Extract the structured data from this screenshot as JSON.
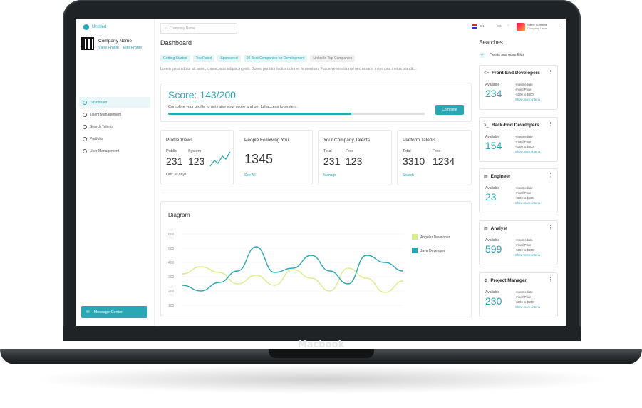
{
  "device": {
    "brand": "Macbook"
  },
  "sidebar": {
    "app_name": "Untitled",
    "company_name": "Company Name",
    "view_profile": "View Profile",
    "edit_profile": "Edit Profile",
    "items": [
      {
        "label": "Dashboard",
        "active": true
      },
      {
        "label": "Talent Management"
      },
      {
        "label": "Search Talents"
      },
      {
        "label": "Portfolio"
      },
      {
        "label": "User Management"
      }
    ],
    "message_center": "Message Center"
  },
  "header": {
    "search_placeholder": "Company Name",
    "language": "EN",
    "user_name": "Name Surname",
    "user_sub": "Company Label"
  },
  "main": {
    "title": "Dashboard",
    "chips": [
      "Getting Started",
      "Top Rated",
      "Sponsored",
      "50 Best Companies for Development",
      "LinkedIn Top Companies"
    ],
    "intro": "Lorem ipsum dolor sit amet, consectetur adipiscing elit. Donec porttitor luctus dolor et fermentum. Fusce venenatis nisl nec ornare, in tempus metus blandit...",
    "score": {
      "title": "Score: 143/200",
      "desc": "Complete your profile to get raise your score and get full access to system.",
      "progress": 0.715,
      "button": "Complete"
    },
    "stats": [
      {
        "title": "Profile Views",
        "a_label": "Public",
        "a_value": "231",
        "b_label": "System",
        "b_value": "123",
        "foot": "Last 30 days"
      },
      {
        "title": "People Following You",
        "value": "1345",
        "link": "See All"
      },
      {
        "title": "Your Company Talents",
        "a_label": "Total",
        "a_value": "231",
        "b_label": "Free",
        "b_value": "123",
        "link": "Manage"
      },
      {
        "title": "Platform Talents",
        "a_label": "Total",
        "a_value": "3310",
        "b_label": "Free",
        "b_value": "1234",
        "link": "Search"
      }
    ]
  },
  "chart_data": {
    "type": "line",
    "title": "Diagram",
    "x": [
      0,
      1,
      2,
      3,
      4,
      5,
      6,
      7,
      8,
      9,
      10,
      11,
      12
    ],
    "ylim": [
      100,
      600
    ],
    "yticks": [
      100,
      200,
      300,
      400,
      500,
      600
    ],
    "series": [
      {
        "name": "Angular Developer",
        "color": "#d7ef8a",
        "values": [
          320,
          370,
          330,
          250,
          310,
          240,
          350,
          290,
          200,
          360,
          290,
          190,
          270
        ]
      },
      {
        "name": "Java Developer",
        "color": "#2aa7b5",
        "values": [
          240,
          200,
          260,
          340,
          510,
          330,
          360,
          450,
          340,
          250,
          450,
          400,
          340
        ]
      }
    ]
  },
  "right": {
    "title": "Searches",
    "filter": "Create one more filter",
    "cards": [
      {
        "icon": "<>",
        "name": "Front-End Developers",
        "avail": "Available",
        "count": "234",
        "l1": "-Intermediate",
        "l2": "-Fixed Price",
        "l3": "-$100 to $500",
        "more": "Show more criteria"
      },
      {
        "icon": ">_",
        "name": "Back-End Developers",
        "avail": "Available",
        "count": "154",
        "l1": "-Intermediate",
        "l2": "-Fixed Price",
        "l3": "-$100 to $500",
        "more": "Show more criteria"
      },
      {
        "icon": "▤",
        "name": "Engineer",
        "avail": "Available",
        "count": "23",
        "l1": "-Intermediate",
        "l2": "-Fixed Price",
        "l3": "-$100 to $500",
        "more": "Show more criteria"
      },
      {
        "icon": "▥",
        "name": "Analyst",
        "avail": "Available",
        "count": "599",
        "l1": "-Intermediate",
        "l2": "-Fixed Price",
        "l3": "-$100 to $500",
        "more": "Show more criteria"
      },
      {
        "icon": "⚙",
        "name": "Project Manager",
        "avail": "Available",
        "count": "230",
        "l1": "-Intermediate",
        "l2": "-Fixed Price",
        "l3": "-$100 to $500",
        "more": "Show more criteria"
      }
    ]
  }
}
